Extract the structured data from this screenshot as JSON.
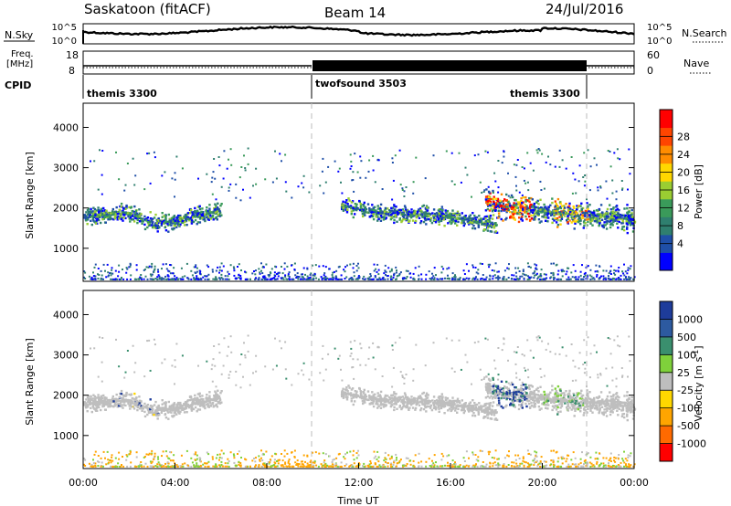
{
  "header": {
    "title": "Saskatoon (fitACF)",
    "beam": "Beam 14",
    "date": "24/Jul/2016"
  },
  "top_panels": {
    "nsky": {
      "label": "N.Sky",
      "right_label": "N.Search",
      "left_ticks": [
        "10^5",
        "10^0"
      ],
      "right_ticks": [
        "10^5",
        "10^0"
      ]
    },
    "freq": {
      "label_line1": "Freq.",
      "label_line2": "[MHz]",
      "right_label": "Nave",
      "left_ticks": [
        "18",
        "8"
      ],
      "right_ticks": [
        "60",
        "0"
      ]
    },
    "cpid": {
      "label": "CPID",
      "segments": [
        {
          "name": "themis 3300",
          "start_h": 0,
          "end_h": 10
        },
        {
          "name": "twofsound 3503",
          "start_h": 10,
          "end_h": 22
        },
        {
          "name": "themis 3300",
          "start_h": 22,
          "end_h": 24
        }
      ]
    }
  },
  "chart_data": [
    {
      "type": "heatmap",
      "title": "",
      "ylabel": "Slant Range [km]",
      "xlabel": "",
      "ylim": [
        180,
        4600
      ],
      "xlim": [
        0,
        24
      ],
      "yticks": [
        1000,
        2000,
        3000,
        4000
      ],
      "colorbar": {
        "label": "Power [dB]",
        "ticks": [
          "4",
          "8",
          "12",
          "16",
          "20",
          "24",
          "28"
        ],
        "colors": [
          "#0000ff",
          "#1f4fa8",
          "#2f7f6f",
          "#3a9a5a",
          "#9acd32",
          "#ffd700",
          "#ff8c00",
          "#ff4500",
          "#ff0000"
        ]
      },
      "features": [
        {
          "name": "echo band 00-06 UT",
          "x": [
            0.0,
            1.0,
            2.0,
            3.0,
            4.0,
            5.0,
            6.0
          ],
          "y": [
            1800,
            1850,
            1900,
            1650,
            1700,
            1850,
            1950
          ]
        },
        {
          "name": "echo band 11-18 UT",
          "x": [
            11.2,
            12.0,
            13.0,
            14.0,
            15.0,
            16.0,
            17.0,
            18.0
          ],
          "y": [
            2100,
            2000,
            1900,
            1900,
            1850,
            1800,
            1700,
            1600
          ]
        },
        {
          "name": "strong echo 17-24 UT",
          "x": [
            17.5,
            18.0,
            19.0,
            20.0,
            21.0,
            22.0,
            23.0,
            24.0
          ],
          "y": [
            2200,
            2100,
            2000,
            1950,
            1900,
            1850,
            1800,
            1750
          ]
        }
      ]
    },
    {
      "type": "heatmap",
      "title": "",
      "ylabel": "Slant Range [km]",
      "xlabel": "Time UT",
      "ylim": [
        180,
        4600
      ],
      "xlim": [
        0,
        24
      ],
      "yticks": [
        1000,
        2000,
        3000,
        4000
      ],
      "xticks": [
        "00:00",
        "04:00",
        "08:00",
        "12:00",
        "16:00",
        "20:00",
        "00:00"
      ],
      "colorbar": {
        "label_main": "Velocity [m s",
        "label_sup": "-1",
        "label_end": "]",
        "ticks": [
          "1000",
          "500",
          "100",
          "25",
          "-25",
          "-100",
          "-500",
          "-1000"
        ],
        "colors": [
          "#1e3c9b",
          "#2d5aa0",
          "#3a8f6e",
          "#7fd13b",
          "#bebebe",
          "#ffd700",
          "#ffa500",
          "#ff6a00",
          "#ff0000"
        ]
      }
    }
  ]
}
